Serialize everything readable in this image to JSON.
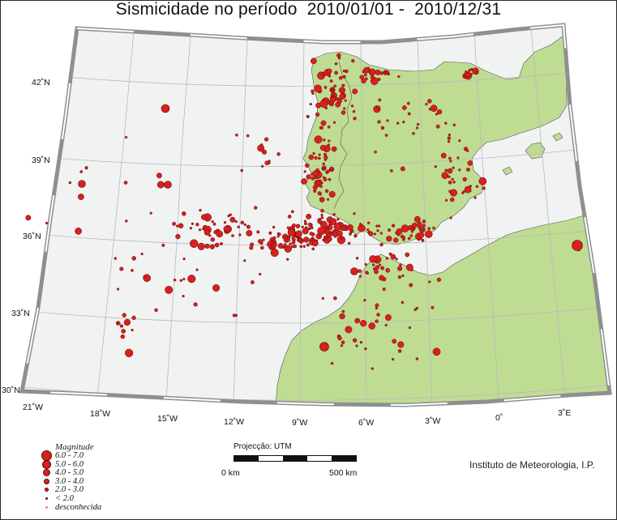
{
  "title": "Sismicidade no período  2010/01/01 -  2010/12/31",
  "latitude_labels": [
    "42˚N",
    "39˚N",
    "36˚N",
    "33˚N",
    "30˚N"
  ],
  "longitude_labels": [
    "21˚W",
    "18˚W",
    "15˚W",
    "12˚W",
    "9˚W",
    "6˚W",
    "3˚W",
    "0˚",
    "3˚E"
  ],
  "legend": {
    "title": "Magnitude",
    "items": [
      "6.0 - 7.0",
      "5.0 - 6.0",
      "4.0 - 5.0",
      "3.0 - 4.0",
      "2.0 - 3.0",
      "< 2.0",
      "desconhecida"
    ]
  },
  "scale": {
    "projection_label": "Projecção: UTM",
    "start_label": "0 km",
    "end_label": "500 km"
  },
  "institution": "Instituto de Meteorologia, I.P.",
  "colors": {
    "land": "#bfdc93",
    "sea": "#f1f3f3",
    "border_frame": "#8f8f8f",
    "epicenter": "#d8201c",
    "epicenter_outline": "#5a0a08"
  }
}
